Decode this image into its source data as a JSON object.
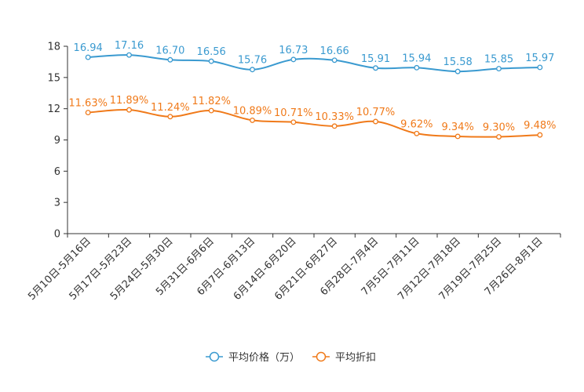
{
  "chart_data": {
    "type": "line",
    "title": "",
    "xlabel": "",
    "ylabel": "",
    "ylim": [
      0,
      18
    ],
    "yticks": [
      0,
      3,
      6,
      9,
      12,
      15,
      18
    ],
    "grid": false,
    "legend_position": "bottom-center",
    "categories": [
      "5月10日-5月16日",
      "5月17日-5月23日",
      "5月24日-5月30日",
      "5月31日-6月6日",
      "6月7日-6月13日",
      "6月14日-6月20日",
      "6月21日-6月27日",
      "6月28日-7月4日",
      "7月5日-7月11日",
      "7月12日-7月18日",
      "7月19日-7月25日",
      "7月26日-8月1日"
    ],
    "series": [
      {
        "name": "平均价格（万）",
        "color": "#3a9ad0",
        "values": [
          16.94,
          17.16,
          16.7,
          16.56,
          15.76,
          16.73,
          16.66,
          15.91,
          15.94,
          15.58,
          15.85,
          15.97
        ],
        "labels": [
          "16.94",
          "17.16",
          "16.70",
          "16.56",
          "15.76",
          "16.73",
          "16.66",
          "15.91",
          "15.94",
          "15.58",
          "15.85",
          "15.97"
        ]
      },
      {
        "name": "平均折扣",
        "color": "#f07a1a",
        "values": [
          11.63,
          11.89,
          11.24,
          11.82,
          10.89,
          10.71,
          10.33,
          10.77,
          9.62,
          9.34,
          9.3,
          9.48
        ],
        "labels": [
          "11.63%",
          "11.89%",
          "11.24%",
          "11.82%",
          "10.89%",
          "10.71%",
          "10.33%",
          "10.77%",
          "9.62%",
          "9.34%",
          "9.30%",
          "9.48%"
        ]
      }
    ]
  }
}
